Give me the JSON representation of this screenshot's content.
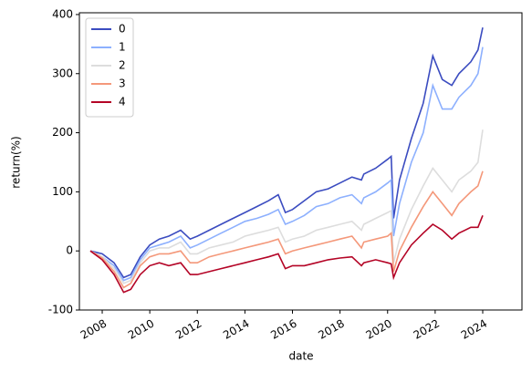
{
  "chart_data": {
    "type": "line",
    "x_label": "date",
    "y_label": "return(%)",
    "xlim": [
      2007.04,
      2025.65
    ],
    "ylim": [
      -100,
      403
    ],
    "xticks": [
      2008,
      2010,
      2012,
      2014,
      2016,
      2018,
      2020,
      2022,
      2024
    ],
    "yticks": [
      -100,
      0,
      100,
      200,
      300,
      400
    ],
    "legend": "upper left",
    "x": [
      2007.5,
      2008.0,
      2008.5,
      2008.9,
      2009.2,
      2009.6,
      2010.0,
      2010.4,
      2010.8,
      2011.3,
      2011.7,
      2012.0,
      2012.5,
      2013.0,
      2013.5,
      2014.0,
      2014.5,
      2015.0,
      2015.4,
      2015.7,
      2016.0,
      2016.5,
      2017.0,
      2017.5,
      2018.0,
      2018.5,
      2018.9,
      2019.0,
      2019.5,
      2020.0,
      2020.15,
      2020.25,
      2020.5,
      2021.0,
      2021.5,
      2021.9,
      2022.3,
      2022.7,
      2023.0,
      2023.5,
      2023.8,
      2024.0
    ],
    "series": [
      {
        "name": "0",
        "color": "#3b4cc0",
        "values": [
          0,
          -5,
          -20,
          -45,
          -40,
          -10,
          10,
          20,
          25,
          35,
          20,
          25,
          35,
          45,
          55,
          65,
          75,
          85,
          95,
          65,
          70,
          85,
          100,
          105,
          115,
          125,
          120,
          130,
          140,
          155,
          160,
          55,
          120,
          190,
          250,
          330,
          290,
          280,
          300,
          320,
          340,
          378
        ]
      },
      {
        "name": "1",
        "color": "#8db0fe",
        "values": [
          0,
          -10,
          -25,
          -50,
          -45,
          -15,
          5,
          10,
          15,
          25,
          5,
          10,
          20,
          30,
          40,
          50,
          55,
          62,
          70,
          45,
          50,
          60,
          75,
          80,
          90,
          95,
          80,
          90,
          100,
          115,
          120,
          25,
          80,
          150,
          200,
          280,
          240,
          240,
          260,
          280,
          300,
          345
        ]
      },
      {
        "name": "2",
        "color": "#dddddd",
        "values": [
          0,
          -10,
          -30,
          -55,
          -50,
          -20,
          0,
          5,
          5,
          15,
          -5,
          -5,
          5,
          10,
          15,
          25,
          30,
          35,
          40,
          15,
          20,
          25,
          35,
          40,
          45,
          50,
          35,
          45,
          55,
          65,
          68,
          -20,
          20,
          70,
          110,
          140,
          120,
          100,
          120,
          135,
          150,
          205
        ]
      },
      {
        "name": "3",
        "color": "#f4987a",
        "values": [
          0,
          -12,
          -35,
          -62,
          -55,
          -25,
          -10,
          -5,
          -5,
          0,
          -20,
          -20,
          -10,
          -5,
          0,
          5,
          10,
          15,
          20,
          -5,
          0,
          5,
          10,
          15,
          20,
          25,
          5,
          15,
          20,
          25,
          30,
          -35,
          0,
          40,
          75,
          100,
          80,
          60,
          80,
          100,
          110,
          135
        ]
      },
      {
        "name": "4",
        "color": "#b40426",
        "values": [
          0,
          -15,
          -40,
          -70,
          -65,
          -40,
          -25,
          -20,
          -25,
          -20,
          -40,
          -40,
          -35,
          -30,
          -25,
          -20,
          -15,
          -10,
          -5,
          -30,
          -25,
          -25,
          -20,
          -15,
          -12,
          -10,
          -25,
          -20,
          -15,
          -20,
          -22,
          -45,
          -20,
          10,
          30,
          45,
          35,
          20,
          30,
          40,
          40,
          60
        ]
      }
    ]
  }
}
